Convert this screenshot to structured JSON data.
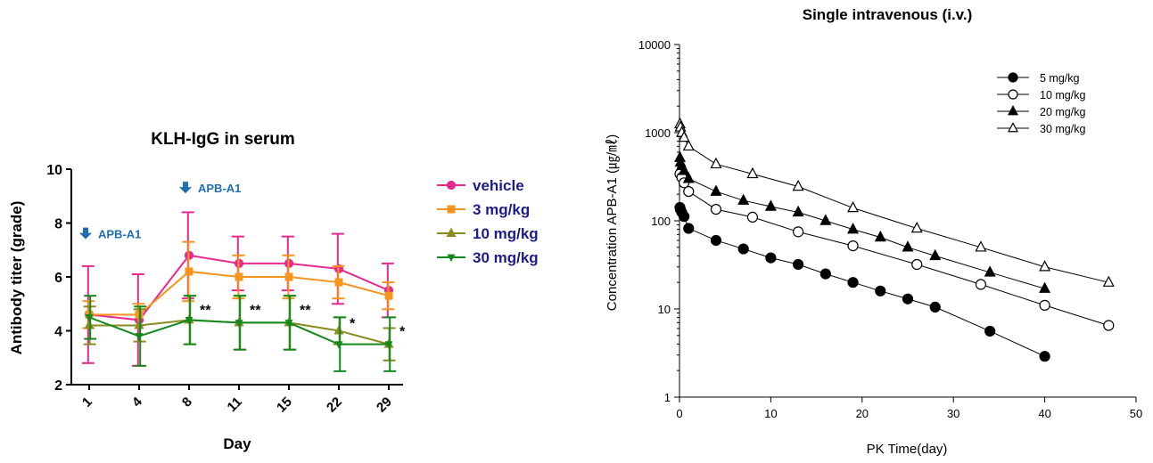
{
  "chart_data": [
    {
      "type": "line",
      "title": "KLH-IgG in serum",
      "xlabel": "Day",
      "ylabel": "Antibody titer (grade)",
      "categories": [
        "1",
        "4",
        "8",
        "11",
        "15",
        "22",
        "29"
      ],
      "ylim": [
        2,
        10
      ],
      "yticks": [
        "2",
        "4",
        "6",
        "8",
        "10"
      ],
      "grid": false,
      "legend_position": "right",
      "annotations": [
        {
          "text": "APB-A1",
          "category": "1",
          "y": 7.6,
          "icon": "down-arrow-icon"
        },
        {
          "text": "APB-A1",
          "category": "8",
          "y": 9.3,
          "icon": "down-arrow-icon"
        }
      ],
      "significance": [
        {
          "text": "**",
          "category": "8",
          "y": 4.6
        },
        {
          "text": "**",
          "category": "11",
          "y": 4.6
        },
        {
          "text": "**",
          "category": "15",
          "y": 4.6
        },
        {
          "text": "*",
          "category": "22",
          "y": 4.1
        },
        {
          "text": "*",
          "category": "29",
          "y": 3.8
        }
      ],
      "series": [
        {
          "name": "vehicle",
          "color": "#e8288e",
          "marker": "circle",
          "values": [
            4.6,
            4.4,
            6.8,
            6.5,
            6.5,
            6.3,
            5.5
          ],
          "error": [
            1.8,
            1.7,
            1.6,
            1.0,
            1.0,
            1.3,
            1.0
          ]
        },
        {
          "name": "3 mg/kg",
          "color": "#f7941d",
          "marker": "square",
          "values": [
            4.6,
            4.6,
            6.2,
            6.0,
            6.0,
            5.8,
            5.3
          ],
          "error": [
            0.5,
            0.4,
            1.1,
            0.8,
            0.8,
            0.6,
            0.5
          ]
        },
        {
          "name": "10 mg/kg",
          "color": "#8a8a1e",
          "marker": "triangle-up",
          "values": [
            4.2,
            4.2,
            4.4,
            4.3,
            4.3,
            4.0,
            3.5
          ],
          "error": [
            0.7,
            0.6,
            0.9,
            1.0,
            1.0,
            0.5,
            0.6
          ]
        },
        {
          "name": "30 mg/kg",
          "color": "#138a1b",
          "marker": "triangle-down",
          "values": [
            4.5,
            3.8,
            4.4,
            4.3,
            4.3,
            3.5,
            3.5
          ],
          "error": [
            0.8,
            1.1,
            0.9,
            1.0,
            1.0,
            1.0,
            1.0
          ]
        }
      ]
    },
    {
      "type": "line",
      "title": "Single intravenous (i.v.)",
      "xlabel": "PK Time(day)",
      "ylabel": "Concentration APB-A1 (㎍/㎖)",
      "xlim": [
        0,
        50
      ],
      "xticks": [
        "0",
        "10",
        "20",
        "30",
        "40",
        "50"
      ],
      "yscale": "log",
      "ylim": [
        1,
        10000
      ],
      "yticks": [
        "1",
        "10",
        "100",
        "1000",
        "10000"
      ],
      "grid": false,
      "legend_position": "top-right",
      "series": [
        {
          "name": "5 mg/kg",
          "marker": "filled-circle",
          "color": "#000000",
          "x": [
            0.05,
            0.1,
            0.25,
            0.5,
            1,
            4,
            7,
            10,
            13,
            16,
            19,
            22,
            25,
            28,
            34,
            40
          ],
          "y": [
            142,
            135,
            125,
            112,
            82,
            60,
            48,
            38,
            32,
            25,
            20,
            16,
            13,
            10.5,
            5.6,
            2.9
          ]
        },
        {
          "name": "10 mg/kg",
          "marker": "open-circle",
          "color": "#000000",
          "x": [
            0.05,
            0.25,
            0.5,
            1,
            4,
            8,
            13,
            19,
            26,
            33,
            40,
            47
          ],
          "y": [
            340,
            310,
            270,
            215,
            135,
            110,
            75,
            52,
            32,
            19,
            11,
            6.5
          ]
        },
        {
          "name": "20 mg/kg",
          "marker": "filled-triangle",
          "color": "#000000",
          "x": [
            0.05,
            0.1,
            0.25,
            0.5,
            1,
            4,
            7,
            10,
            13,
            16,
            19,
            22,
            25,
            28,
            34,
            40
          ],
          "y": [
            520,
            460,
            420,
            370,
            300,
            215,
            170,
            145,
            125,
            100,
            80,
            65,
            50,
            40,
            26,
            17
          ]
        },
        {
          "name": "30 mg/kg",
          "marker": "open-triangle",
          "color": "#000000",
          "x": [
            0.05,
            0.1,
            0.25,
            0.5,
            1,
            4,
            8,
            13,
            19,
            26,
            33,
            40,
            47
          ],
          "y": [
            1250,
            1150,
            1000,
            880,
            700,
            440,
            340,
            245,
            140,
            82,
            50,
            30,
            20
          ]
        }
      ]
    }
  ]
}
